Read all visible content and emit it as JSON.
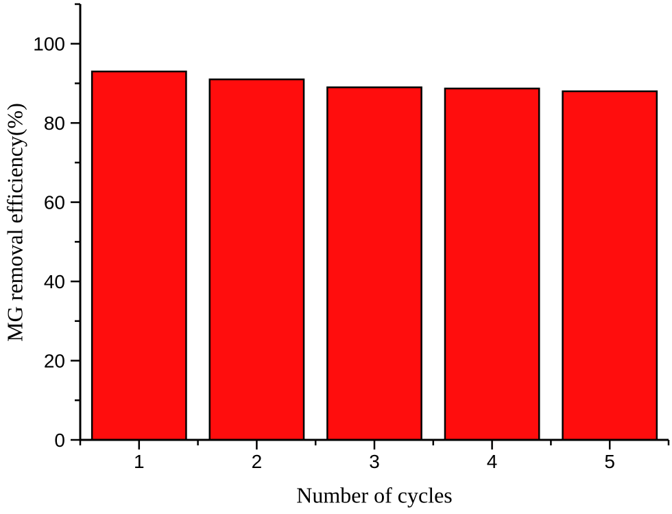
{
  "chart_data": {
    "type": "bar",
    "title": "",
    "categories": [
      1,
      2,
      3,
      4,
      5
    ],
    "values": [
      93,
      91,
      89,
      88.7,
      88
    ],
    "xlabel": "Number of cycles",
    "ylabel": "MG removal efficiency(%)",
    "xlim": [
      0.5,
      5.5
    ],
    "ylim": [
      0,
      110
    ],
    "yticks_major": [
      0,
      20,
      40,
      60,
      80,
      100
    ],
    "yticks_minor": [
      10,
      30,
      50,
      70,
      90,
      110
    ],
    "xticks_major": [
      1,
      2,
      3,
      4,
      5
    ],
    "xticks_minor": [
      0.5,
      1.5,
      2.5,
      3.5,
      4.5,
      5.5
    ],
    "xtick_labels": [
      "1",
      "2",
      "3",
      "4",
      "5"
    ],
    "ytick_labels": [
      "0",
      "20",
      "40",
      "60",
      "80",
      "100"
    ],
    "bar_width_frac": 0.8,
    "bar_color": "#ff0d0d",
    "bar_border_color": "#000000",
    "axis_color": "#000000",
    "background": "#ffffff",
    "grid": false,
    "legend": null
  }
}
